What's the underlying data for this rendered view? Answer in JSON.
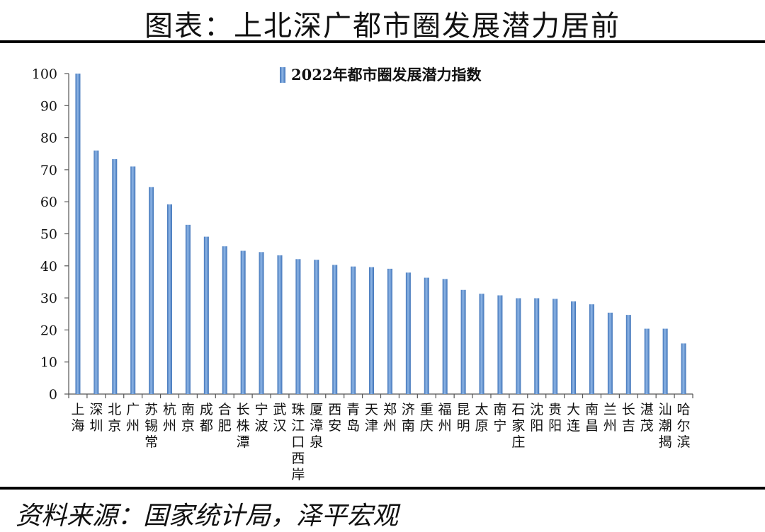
{
  "title": "图表：上北深广都市圈发展潜力居前",
  "source": "资料来源：国家统计局，泽平宏观",
  "chart_data": {
    "type": "bar",
    "series": [
      {
        "name": "2022年都市圈发展潜力指数",
        "values": [
          100,
          76,
          73.3,
          71,
          64.6,
          59.2,
          52.8,
          49.1,
          46.1,
          44.7,
          44.3,
          43.3,
          42.1,
          41.9,
          40.3,
          39.8,
          39.6,
          39.1,
          37.9,
          36.3,
          35.9,
          32.5,
          31.3,
          30.8,
          29.9,
          29.9,
          29.7,
          28.9,
          28.0,
          25.4,
          24.7,
          20.4,
          20.4,
          15.8
        ]
      }
    ],
    "categories": [
      "上海",
      "深圳",
      "北京",
      "广州",
      "苏锡常",
      "杭州",
      "南京",
      "成都",
      "合肥",
      "长株潭",
      "宁波",
      "武汉",
      "珠江口西岸",
      "厦漳泉",
      "西安",
      "青岛",
      "天津",
      "郑州",
      "济南",
      "重庆",
      "福州",
      "昆明",
      "太原",
      "南宁",
      "石家庄",
      "沈阳",
      "贵阳",
      "大连",
      "南昌",
      "兰州",
      "长吉",
      "湛茂",
      "汕潮揭",
      "哈尔滨"
    ],
    "ylim": [
      0,
      100
    ],
    "yticks": [
      "0",
      "10",
      "20",
      "30",
      "40",
      "50",
      "60",
      "70",
      "80",
      "90",
      "100"
    ],
    "legend_position": "top",
    "grid": false,
    "bar_color": "#5b8fd0"
  }
}
